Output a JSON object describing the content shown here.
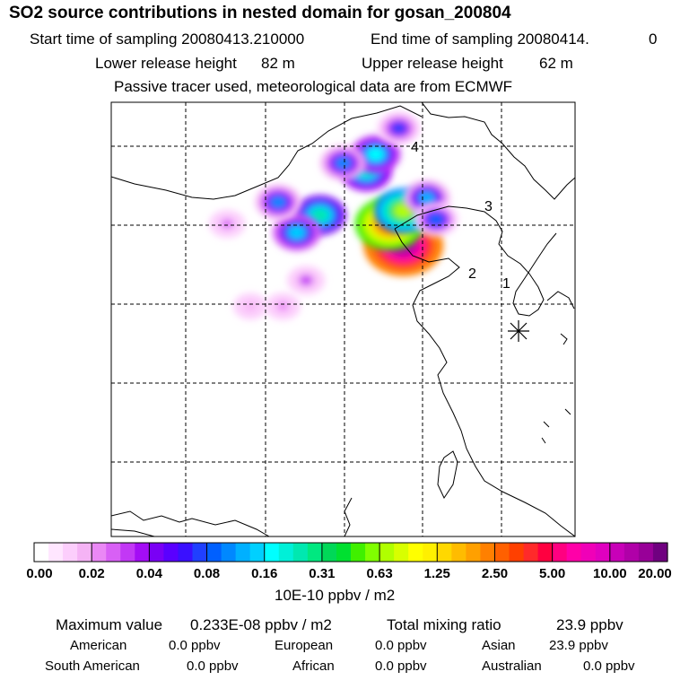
{
  "header": {
    "title": "SO2 source contributions in nested domain for gosan_200804",
    "start_label": "Start time of sampling 20080413.210000",
    "end_label": "End time of sampling 20080414.",
    "end_suffix": "0",
    "lower_label": "Lower release height",
    "lower_value": "82 m",
    "upper_label": "Upper release height",
    "upper_value": "62 m",
    "note": "Passive tracer used, meteorological data are from ECMWF"
  },
  "map": {
    "source_labels": [
      "1",
      "2",
      "3",
      "4"
    ],
    "receptor_marker": "asterisk"
  },
  "chart_data": {
    "type": "heatmap",
    "title": "SO2 source contributions in nested domain for gosan_200804",
    "colorbar": {
      "ticks": [
        "0.00",
        "0.02",
        "0.04",
        "0.08",
        "0.16",
        "0.31",
        "0.63",
        "1.25",
        "2.50",
        "5.00",
        "10.00",
        "20.00"
      ],
      "unit": "10E-10 ppbv / m2",
      "colors": [
        "#ffffff",
        "#ffe6ff",
        "#fccefc",
        "#f5b3f5",
        "#ea88f5",
        "#d860f5",
        "#c238f5",
        "#a40df5",
        "#7a00f5",
        "#5a00ff",
        "#3a10ff",
        "#2040ff",
        "#0060ff",
        "#0088ff",
        "#00b0ff",
        "#00d0ff",
        "#00ffff",
        "#00f0d8",
        "#00e8b0",
        "#00e880",
        "#00d858",
        "#00e030",
        "#40f000",
        "#80ff00",
        "#b0ff00",
        "#d8ff00",
        "#ffff00",
        "#fff000",
        "#ffd800",
        "#ffbc00",
        "#ffa000",
        "#ff8000",
        "#ff6000",
        "#ff4000",
        "#ff2a2a",
        "#ff0040",
        "#ff0080",
        "#ff00a8",
        "#f000b8",
        "#e000c0",
        "#c800b8",
        "#b000a8",
        "#980098",
        "#700080"
      ]
    },
    "plumes": [
      {
        "lon": 0.63,
        "lat": 0.33,
        "level": 0.95
      },
      {
        "lon": 0.6,
        "lat": 0.28,
        "level": 0.75
      },
      {
        "lon": 0.63,
        "lat": 0.25,
        "level": 0.55
      },
      {
        "lon": 0.55,
        "lat": 0.16,
        "level": 0.4
      },
      {
        "lon": 0.57,
        "lat": 0.12,
        "level": 0.38
      },
      {
        "lon": 0.68,
        "lat": 0.22,
        "level": 0.32
      },
      {
        "lon": 0.45,
        "lat": 0.26,
        "level": 0.42
      },
      {
        "lon": 0.4,
        "lat": 0.3,
        "level": 0.35
      },
      {
        "lon": 0.36,
        "lat": 0.23,
        "level": 0.3
      },
      {
        "lon": 0.5,
        "lat": 0.14,
        "level": 0.3
      },
      {
        "lon": 0.62,
        "lat": 0.06,
        "level": 0.25
      },
      {
        "lon": 0.7,
        "lat": 0.27,
        "level": 0.28
      },
      {
        "lon": 0.42,
        "lat": 0.41,
        "level": 0.15
      },
      {
        "lon": 0.3,
        "lat": 0.47,
        "level": 0.08
      },
      {
        "lon": 0.25,
        "lat": 0.28,
        "level": 0.12
      },
      {
        "lon": 0.37,
        "lat": 0.47,
        "level": 0.1
      }
    ]
  },
  "stats": {
    "max_label": "Maximum value",
    "max_value": "0.233E-08 ppbv / m2",
    "total_label": "Total mixing ratio",
    "total_value": "23.9 ppbv",
    "sources": [
      {
        "name": "American",
        "value": "0.0 ppbv"
      },
      {
        "name": "European",
        "value": "0.0 ppbv"
      },
      {
        "name": "Asian",
        "value": "23.9 ppbv"
      },
      {
        "name": "South American",
        "value": "0.0 ppbv"
      },
      {
        "name": "African",
        "value": "0.0 ppbv"
      },
      {
        "name": "Australian",
        "value": "0.0 ppbv"
      }
    ]
  }
}
